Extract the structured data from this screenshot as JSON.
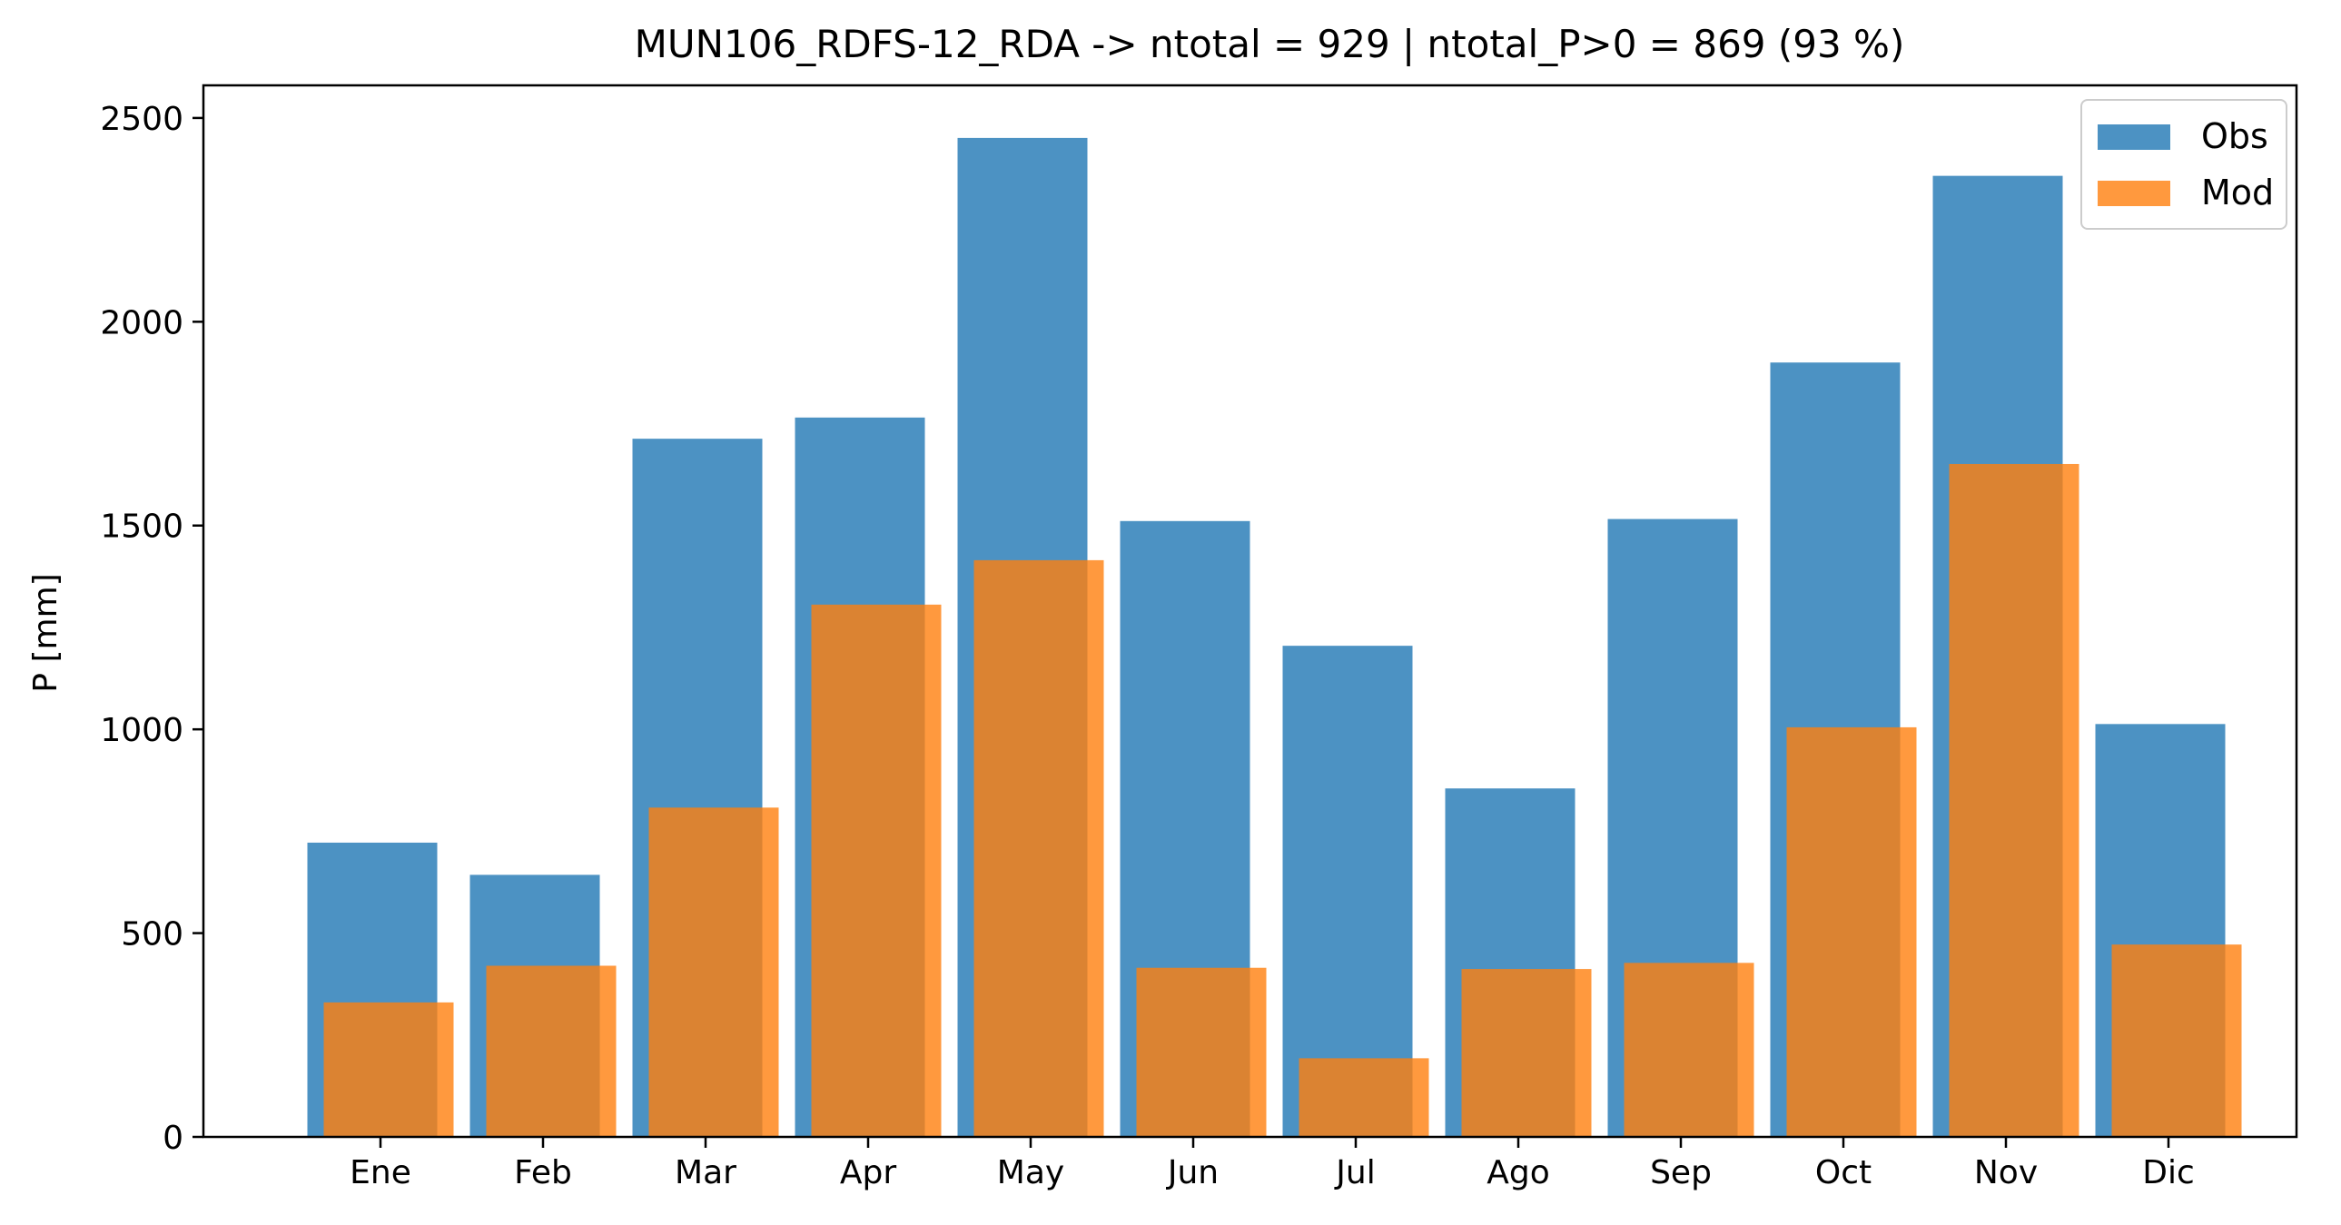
{
  "chart_data": {
    "type": "bar",
    "title": "MUN106_RDFS-12_RDA -> ntotal = 929 | ntotal_P>0 = 869 (93 %)",
    "xlabel": "",
    "ylabel": "P [mm]",
    "categories": [
      "Ene",
      "Feb",
      "Mar",
      "Apr",
      "May",
      "Jun",
      "Jul",
      "Ago",
      "Sep",
      "Oct",
      "Nov",
      "Dic"
    ],
    "series": [
      {
        "name": "Obs",
        "color": "#1f77b4",
        "opacity": 0.8,
        "values": [
          722,
          643,
          1713,
          1765,
          2451,
          1511,
          1205,
          855,
          1516,
          1900,
          2358,
          1013
        ]
      },
      {
        "name": "Mod",
        "color": "#ff7f0e",
        "opacity": 0.8,
        "values": [
          330,
          420,
          808,
          1306,
          1415,
          415,
          193,
          412,
          427,
          1005,
          1651,
          472
        ]
      }
    ],
    "ylim": [
      0,
      2580
    ],
    "yticks": [
      0,
      500,
      1000,
      1500,
      2000,
      2500
    ],
    "grid": false,
    "legend": "top-right"
  }
}
